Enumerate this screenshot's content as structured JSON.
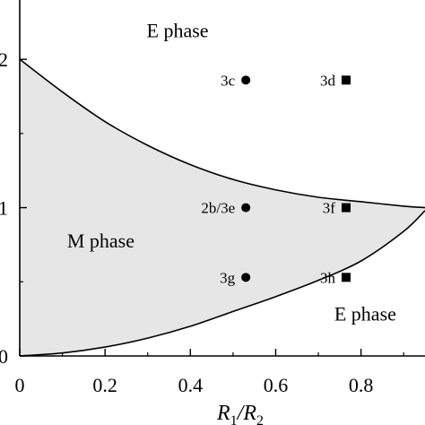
{
  "chart_data": {
    "type": "scatter",
    "title": "",
    "xlabel": "R1/R2",
    "ylabel": "",
    "xlim": [
      0,
      0.95
    ],
    "ylim": [
      0,
      2.4
    ],
    "x_ticks": [
      "0",
      "0.2",
      "0.4",
      "0.6",
      "0.8"
    ],
    "x_tick_values": [
      0,
      0.2,
      0.4,
      0.6,
      0.8
    ],
    "y_ticks": [
      "0",
      "1",
      "2"
    ],
    "y_tick_values": [
      0,
      1,
      2
    ],
    "grid": false,
    "region_labels": [
      {
        "text": "E phase",
        "x": 0.37,
        "y": 2.15
      },
      {
        "text": "M phase",
        "x": 0.19,
        "y": 0.73
      },
      {
        "text": "E phase",
        "x": 0.81,
        "y": 0.24
      }
    ],
    "boundaries": [
      {
        "name": "upper",
        "x": [
          0,
          0.1,
          0.2,
          0.3,
          0.4,
          0.5,
          0.6,
          0.7,
          0.8,
          0.9,
          0.95
        ],
        "y": [
          2.0,
          1.78,
          1.58,
          1.42,
          1.29,
          1.19,
          1.12,
          1.07,
          1.04,
          1.01,
          1.0
        ]
      },
      {
        "name": "lower",
        "x": [
          0,
          0.1,
          0.2,
          0.3,
          0.4,
          0.5,
          0.6,
          0.7,
          0.8,
          0.9,
          0.95
        ],
        "y": [
          0.0,
          0.02,
          0.06,
          0.12,
          0.2,
          0.3,
          0.4,
          0.51,
          0.64,
          0.84,
          0.98
        ]
      }
    ],
    "series": [
      {
        "marker": "circle",
        "points": [
          {
            "label": "3c",
            "x": 0.53,
            "y": 1.86
          },
          {
            "label": "2b/3e",
            "x": 0.53,
            "y": 1.0
          },
          {
            "label": "3g",
            "x": 0.53,
            "y": 0.53
          }
        ]
      },
      {
        "marker": "square",
        "points": [
          {
            "label": "3d",
            "x": 0.765,
            "y": 1.86
          },
          {
            "label": "3f",
            "x": 0.765,
            "y": 1.0
          },
          {
            "label": "3h",
            "x": 0.765,
            "y": 0.53
          }
        ]
      }
    ],
    "fill_color": "#e6e6e6",
    "line_color": "#000000"
  }
}
